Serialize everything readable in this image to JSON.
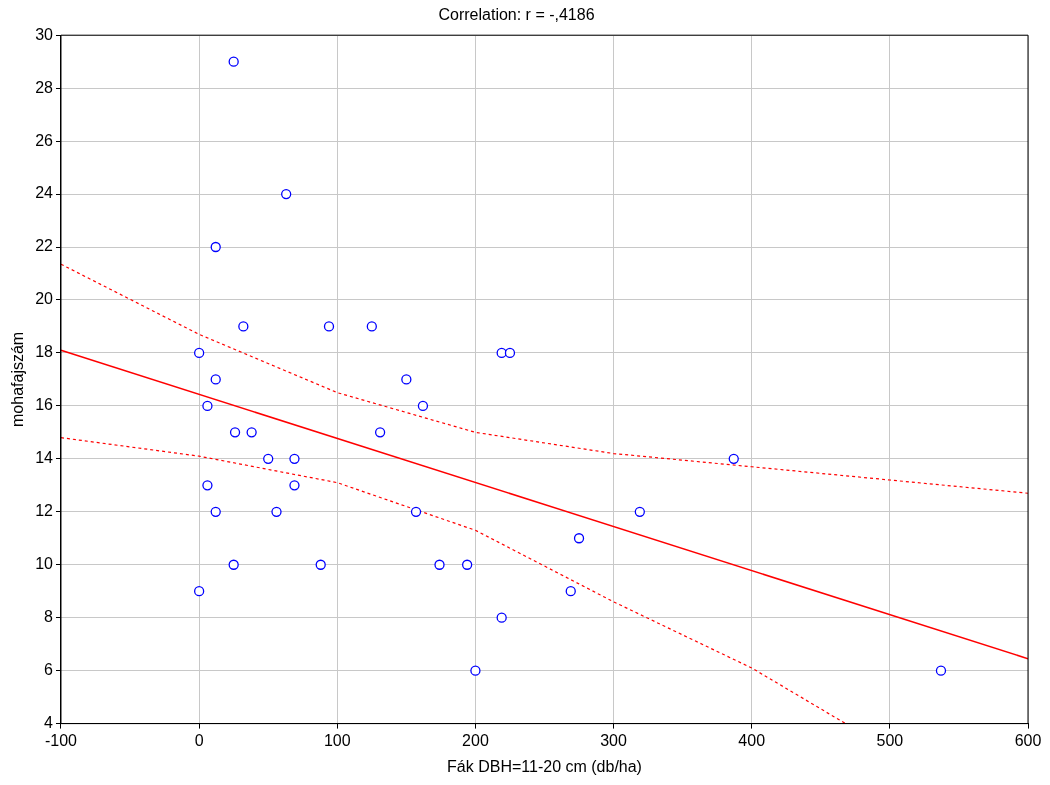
{
  "chart_data": {
    "type": "scatter",
    "title": "Correlation: r = -,4186",
    "xlabel": "Fák DBH=11-20 cm (db/ha)",
    "ylabel": "mohafajszám",
    "xlim": [
      -100,
      600
    ],
    "xticks": [
      -100,
      0,
      100,
      200,
      300,
      400,
      500,
      600
    ],
    "ylim": [
      4,
      30
    ],
    "yticks": [
      4,
      6,
      8,
      10,
      12,
      14,
      16,
      18,
      20,
      22,
      24,
      26,
      28,
      30
    ],
    "grid": true,
    "legend": false,
    "series": [
      {
        "color": "#0000ff",
        "marker": "circle",
        "x": [
          25,
          63,
          12,
          32,
          94,
          125,
          0,
          219,
          225,
          12,
          150,
          6,
          162,
          26,
          38,
          131,
          50,
          69,
          387,
          6,
          69,
          12,
          56,
          157,
          319,
          275,
          25,
          88,
          174,
          194,
          0,
          269,
          219,
          200,
          537
        ],
        "values": [
          29,
          24,
          22,
          19,
          19,
          19,
          18,
          18,
          18,
          17,
          17,
          16,
          16,
          15,
          15,
          15,
          14,
          14,
          14,
          13,
          13,
          12,
          12,
          12,
          12,
          11,
          10,
          10,
          10,
          10,
          9,
          9,
          8,
          6,
          6
        ]
      },
      {
        "type": "line",
        "color": "#ff0000",
        "marker": "none",
        "line_style": "solid",
        "x": [
          -100,
          600
        ],
        "values": [
          18.1,
          6.45
        ]
      },
      {
        "type": "line",
        "color": "#ff0000",
        "marker": "none",
        "line_style": "dashed",
        "x": [
          -100,
          0,
          100,
          200,
          300,
          400,
          500,
          600
        ],
        "values": [
          21.35,
          18.7,
          16.5,
          15.0,
          14.2,
          13.7,
          13.2,
          12.7
        ]
      },
      {
        "type": "line",
        "color": "#ff0000",
        "marker": "none",
        "line_style": "dashed",
        "x": [
          -100,
          0,
          100,
          200,
          300,
          400,
          468
        ],
        "values": [
          14.8,
          14.1,
          13.1,
          11.3,
          8.6,
          6.1,
          4.0
        ]
      }
    ]
  }
}
